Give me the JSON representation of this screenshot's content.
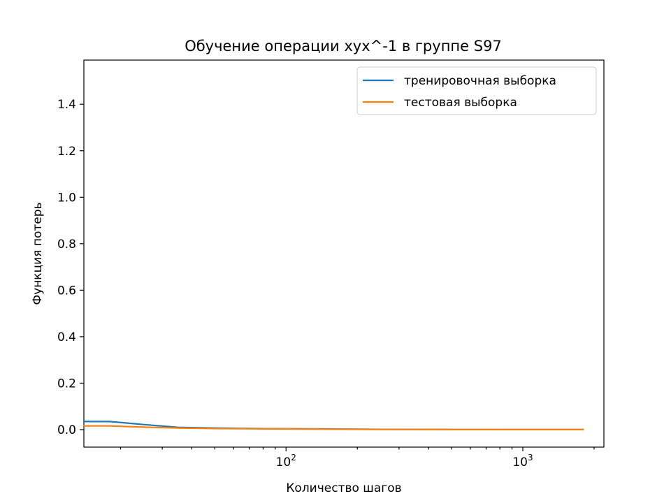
{
  "chart_data": {
    "type": "line",
    "title": "Обучение операции xyx^-1 в группе S97",
    "xlabel": "Количество шагов",
    "ylabel": "Функция потерь",
    "xscale": "log",
    "xlim": [
      14,
      2200
    ],
    "ylim": [
      -0.075,
      1.59
    ],
    "yticks": [
      0.0,
      0.2,
      0.4,
      0.6,
      0.8,
      1.0,
      1.2,
      1.4
    ],
    "ytick_labels": [
      "0.0",
      "0.2",
      "0.4",
      "0.6",
      "0.8",
      "1.0",
      "1.2",
      "1.4"
    ],
    "xticks_major": [
      100,
      1000
    ],
    "xtick_labels": [
      {
        "base": "10",
        "exp": "2"
      },
      {
        "base": "10",
        "exp": "3"
      }
    ],
    "legend_position": "top-right",
    "grid": false,
    "series": [
      {
        "name": "тренировочная выборка",
        "color": "#1f77b4",
        "x": [
          14,
          18,
          25,
          35,
          50,
          70,
          100,
          150,
          200,
          300,
          500,
          1000,
          1800
        ],
        "y": [
          0.035,
          0.035,
          0.022,
          0.01,
          0.007,
          0.005,
          0.004,
          0.003,
          0.002,
          0.001,
          0.0008,
          0.0005,
          0.0005
        ]
      },
      {
        "name": "тестовая выборка",
        "color": "#ff7f0e",
        "x": [
          14,
          18,
          25,
          35,
          50,
          70,
          100,
          150,
          200,
          300,
          500,
          1000,
          1800
        ],
        "y": [
          0.016,
          0.016,
          0.011,
          0.007,
          0.005,
          0.004,
          0.003,
          0.002,
          0.0015,
          0.001,
          0.0008,
          0.0005,
          0.0005
        ]
      }
    ]
  }
}
